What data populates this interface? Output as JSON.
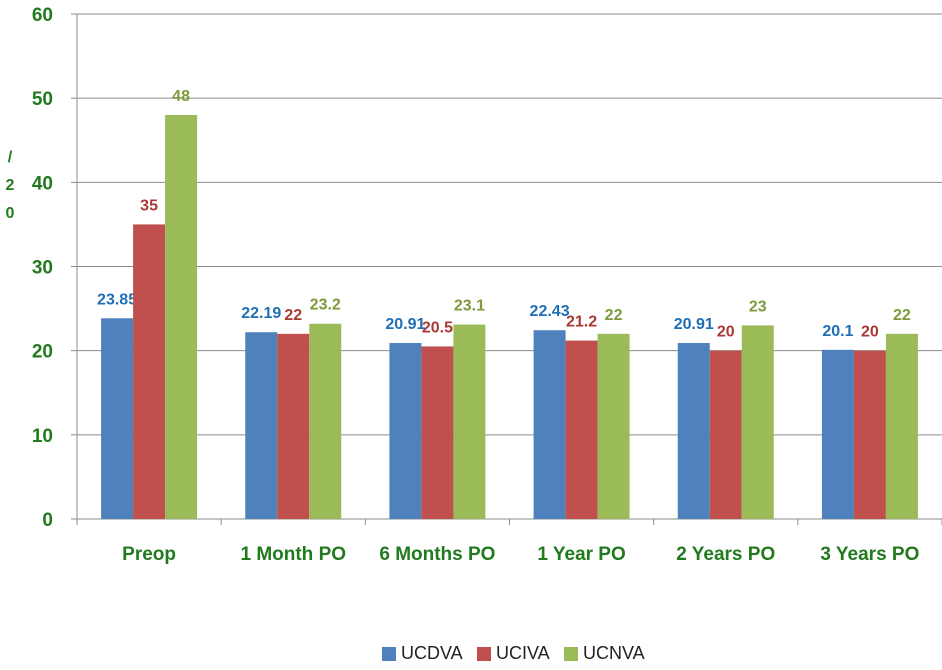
{
  "chart_data": {
    "type": "bar",
    "y_label": "/20",
    "categories": [
      "Preop",
      "1 Month PO",
      "6 Months PO",
      "1 Year PO",
      "2 Years PO",
      "3 Years PO"
    ],
    "series": [
      {
        "name": "UCDVA",
        "color": "#4f81bd",
        "label_color": "#1f6fb5",
        "values": [
          23.85,
          22.19,
          20.91,
          22.43,
          20.91,
          20.1
        ]
      },
      {
        "name": "UCIVA",
        "color": "#c0504d",
        "label_color": "#a83a36",
        "values": [
          35,
          22,
          20.5,
          21.2,
          20,
          20
        ]
      },
      {
        "name": "UCNVA",
        "color": "#9bbb59",
        "label_color": "#7e9a3c",
        "values": [
          48,
          23.2,
          23.1,
          22,
          23,
          22
        ]
      }
    ],
    "ylim": [
      0,
      60
    ],
    "yticks": [
      0,
      10,
      20,
      30,
      40,
      50,
      60
    ],
    "grid": true,
    "legend": "bottom"
  }
}
